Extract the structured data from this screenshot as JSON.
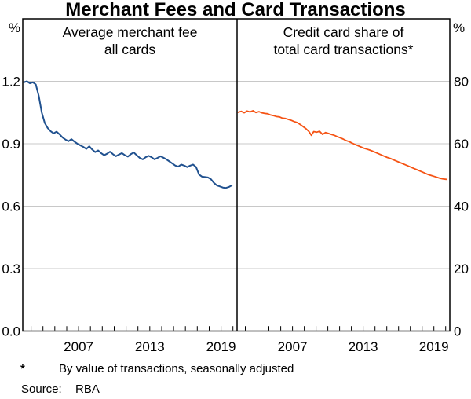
{
  "title": "Merchant Fees and Card Transactions",
  "axes": {
    "left_unit": "%",
    "right_unit": "%"
  },
  "footnote": {
    "marker": "*",
    "text": "By value of transactions, seasonally adjusted"
  },
  "source": {
    "label": "Source:",
    "value": "RBA"
  },
  "colors": {
    "fee_line": "#20518f",
    "share_line": "#f55314",
    "gridline": "#c8c8c8",
    "frame": "#000000"
  },
  "chart_data": [
    {
      "type": "line",
      "panel": "left",
      "series_name": "Average merchant fee, all cards",
      "title_lines": [
        "Average merchant fee",
        "all cards"
      ],
      "unit": "%",
      "color_key": "fee_line",
      "x_range": [
        2002.3,
        2020.35
      ],
      "y_range": [
        0,
        1.5
      ],
      "y_tick_values": [
        0,
        0.3,
        0.6,
        0.9,
        1.2
      ],
      "y_tick_labels": [
        "0.0",
        "0.3",
        "0.6",
        "0.9",
        "1.2"
      ],
      "x_tick_years": [
        2003,
        2004,
        2005,
        2006,
        2007,
        2008,
        2009,
        2010,
        2011,
        2012,
        2013,
        2014,
        2015,
        2016,
        2017,
        2018,
        2019,
        2020
      ],
      "x_labeled_years": [
        2007,
        2013,
        2019
      ],
      "grid": true,
      "points": [
        [
          2002.4,
          1.195
        ],
        [
          2002.65,
          1.2
        ],
        [
          2002.9,
          1.19
        ],
        [
          2003.15,
          1.195
        ],
        [
          2003.4,
          1.185
        ],
        [
          2003.65,
          1.13
        ],
        [
          2003.9,
          1.05
        ],
        [
          2004.15,
          1.0
        ],
        [
          2004.4,
          0.975
        ],
        [
          2004.65,
          0.96
        ],
        [
          2004.9,
          0.95
        ],
        [
          2005.15,
          0.958
        ],
        [
          2005.4,
          0.945
        ],
        [
          2005.65,
          0.93
        ],
        [
          2005.9,
          0.92
        ],
        [
          2006.15,
          0.912
        ],
        [
          2006.4,
          0.922
        ],
        [
          2006.65,
          0.91
        ],
        [
          2006.9,
          0.9
        ],
        [
          2007.15,
          0.892
        ],
        [
          2007.4,
          0.885
        ],
        [
          2007.65,
          0.875
        ],
        [
          2007.9,
          0.888
        ],
        [
          2008.15,
          0.872
        ],
        [
          2008.4,
          0.86
        ],
        [
          2008.65,
          0.868
        ],
        [
          2008.9,
          0.855
        ],
        [
          2009.15,
          0.845
        ],
        [
          2009.4,
          0.852
        ],
        [
          2009.65,
          0.862
        ],
        [
          2009.9,
          0.85
        ],
        [
          2010.15,
          0.84
        ],
        [
          2010.4,
          0.848
        ],
        [
          2010.65,
          0.855
        ],
        [
          2010.9,
          0.845
        ],
        [
          2011.15,
          0.838
        ],
        [
          2011.4,
          0.85
        ],
        [
          2011.65,
          0.858
        ],
        [
          2011.9,
          0.845
        ],
        [
          2012.15,
          0.832
        ],
        [
          2012.4,
          0.825
        ],
        [
          2012.65,
          0.835
        ],
        [
          2012.9,
          0.842
        ],
        [
          2013.15,
          0.835
        ],
        [
          2013.4,
          0.825
        ],
        [
          2013.65,
          0.832
        ],
        [
          2013.9,
          0.84
        ],
        [
          2014.15,
          0.833
        ],
        [
          2014.4,
          0.825
        ],
        [
          2014.65,
          0.815
        ],
        [
          2014.9,
          0.805
        ],
        [
          2015.15,
          0.795
        ],
        [
          2015.4,
          0.79
        ],
        [
          2015.65,
          0.8
        ],
        [
          2015.9,
          0.795
        ],
        [
          2016.15,
          0.788
        ],
        [
          2016.4,
          0.795
        ],
        [
          2016.65,
          0.8
        ],
        [
          2016.9,
          0.788
        ],
        [
          2017.15,
          0.752
        ],
        [
          2017.4,
          0.742
        ],
        [
          2017.65,
          0.74
        ],
        [
          2017.9,
          0.738
        ],
        [
          2018.15,
          0.73
        ],
        [
          2018.4,
          0.712
        ],
        [
          2018.65,
          0.7
        ],
        [
          2018.9,
          0.695
        ],
        [
          2019.15,
          0.69
        ],
        [
          2019.4,
          0.688
        ],
        [
          2019.65,
          0.692
        ],
        [
          2019.9,
          0.7
        ]
      ]
    },
    {
      "type": "line",
      "panel": "right",
      "series_name": "Credit card share of total card transactions",
      "title_lines": [
        "Credit card share of",
        "total card transactions*"
      ],
      "unit": "%",
      "color_key": "share_line",
      "x_range": [
        2002.3,
        2020.35
      ],
      "y_range": [
        0,
        100
      ],
      "y_tick_values": [
        0,
        20,
        40,
        60,
        80
      ],
      "y_tick_labels": [
        "0",
        "20",
        "40",
        "60",
        "80"
      ],
      "x_tick_years": [
        2003,
        2004,
        2005,
        2006,
        2007,
        2008,
        2009,
        2010,
        2011,
        2012,
        2013,
        2014,
        2015,
        2016,
        2017,
        2018,
        2019,
        2020
      ],
      "x_labeled_years": [
        2007,
        2013,
        2019
      ],
      "grid": true,
      "points": [
        [
          2002.4,
          70.1
        ],
        [
          2002.65,
          70.4
        ],
        [
          2002.9,
          69.9
        ],
        [
          2003.15,
          70.5
        ],
        [
          2003.4,
          70.2
        ],
        [
          2003.65,
          70.6
        ],
        [
          2003.9,
          70.0
        ],
        [
          2004.15,
          70.3
        ],
        [
          2004.4,
          69.9
        ],
        [
          2004.65,
          69.7
        ],
        [
          2004.9,
          69.6
        ],
        [
          2005.15,
          69.2
        ],
        [
          2005.4,
          69.0
        ],
        [
          2005.65,
          68.7
        ],
        [
          2005.9,
          68.6
        ],
        [
          2006.15,
          68.2
        ],
        [
          2006.4,
          68.1
        ],
        [
          2006.65,
          67.8
        ],
        [
          2006.9,
          67.5
        ],
        [
          2007.15,
          67.1
        ],
        [
          2007.4,
          66.8
        ],
        [
          2007.65,
          66.2
        ],
        [
          2007.9,
          65.5
        ],
        [
          2008.15,
          64.8
        ],
        [
          2008.4,
          63.9
        ],
        [
          2008.6,
          62.7
        ],
        [
          2008.8,
          63.9
        ],
        [
          2009.05,
          63.7
        ],
        [
          2009.3,
          64.0
        ],
        [
          2009.55,
          63.0
        ],
        [
          2009.8,
          63.6
        ],
        [
          2010.05,
          63.3
        ],
        [
          2010.3,
          63.0
        ],
        [
          2010.55,
          62.7
        ],
        [
          2010.8,
          62.3
        ],
        [
          2011.05,
          61.9
        ],
        [
          2011.3,
          61.5
        ],
        [
          2011.55,
          61.0
        ],
        [
          2011.8,
          60.7
        ],
        [
          2012.05,
          60.2
        ],
        [
          2012.3,
          59.8
        ],
        [
          2012.55,
          59.4
        ],
        [
          2012.8,
          59.0
        ],
        [
          2013.05,
          58.6
        ],
        [
          2013.3,
          58.3
        ],
        [
          2013.55,
          58.0
        ],
        [
          2013.8,
          57.6
        ],
        [
          2014.05,
          57.2
        ],
        [
          2014.3,
          56.8
        ],
        [
          2014.55,
          56.4
        ],
        [
          2014.8,
          56.0
        ],
        [
          2015.05,
          55.6
        ],
        [
          2015.3,
          55.3
        ],
        [
          2015.55,
          54.9
        ],
        [
          2015.8,
          54.5
        ],
        [
          2016.05,
          54.1
        ],
        [
          2016.3,
          53.7
        ],
        [
          2016.55,
          53.3
        ],
        [
          2016.8,
          52.9
        ],
        [
          2017.05,
          52.5
        ],
        [
          2017.3,
          52.1
        ],
        [
          2017.55,
          51.7
        ],
        [
          2017.8,
          51.3
        ],
        [
          2018.05,
          50.9
        ],
        [
          2018.3,
          50.5
        ],
        [
          2018.55,
          50.1
        ],
        [
          2018.8,
          49.8
        ],
        [
          2019.05,
          49.5
        ],
        [
          2019.3,
          49.2
        ],
        [
          2019.55,
          48.9
        ],
        [
          2019.8,
          48.7
        ],
        [
          2020.05,
          48.6
        ]
      ]
    }
  ]
}
